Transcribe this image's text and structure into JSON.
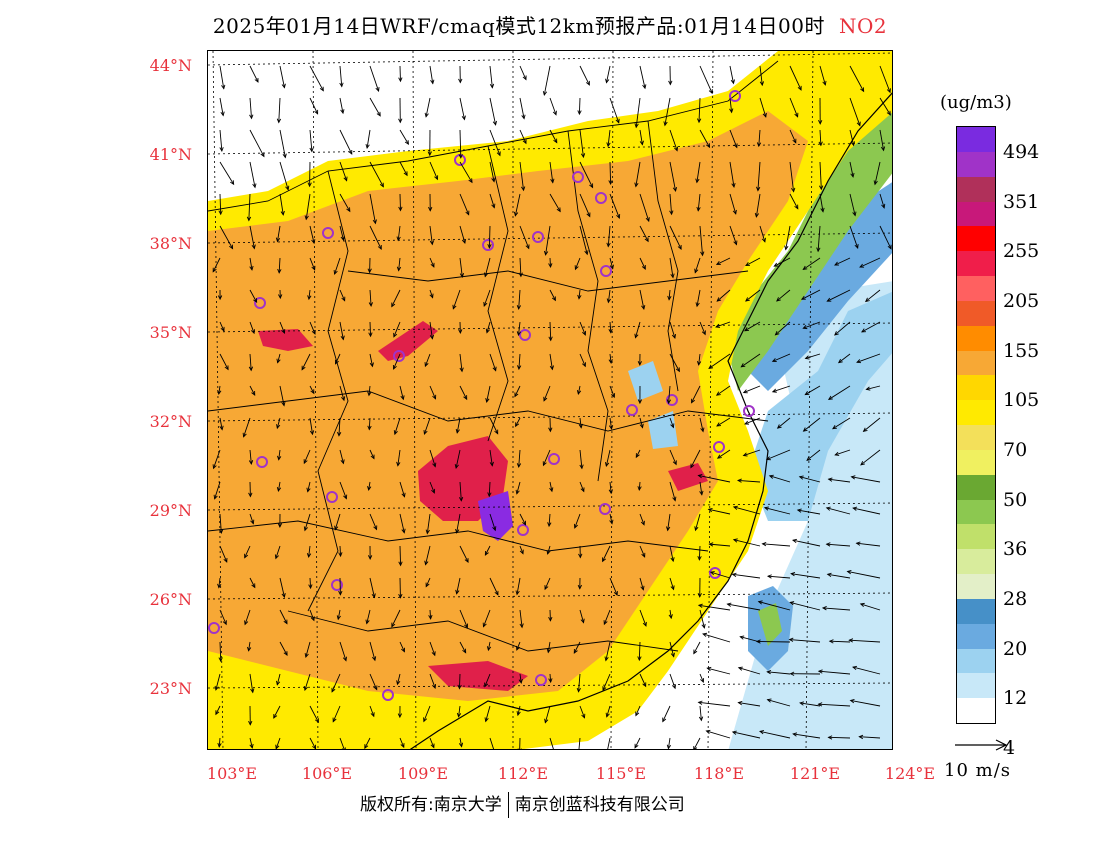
{
  "title": {
    "main": "2025年01月14日WRF/cmaq模式12km预报产品:01月14日00时",
    "species": "NO2"
  },
  "axes": {
    "lat_labels": [
      "44°N",
      "41°N",
      "38°N",
      "35°N",
      "32°N",
      "29°N",
      "26°N",
      "23°N"
    ],
    "lon_labels": [
      "103°E",
      "106°E",
      "109°E",
      "112°E",
      "115°E",
      "118°E",
      "121°E",
      "124°E"
    ]
  },
  "legend": {
    "unit": "(ug/m3)",
    "ticks": [
      "494",
      "351",
      "255",
      "205",
      "155",
      "105",
      "70",
      "50",
      "36",
      "28",
      "20",
      "12",
      "4"
    ],
    "colors": [
      "#7a2be0",
      "#a033c8",
      "#b0305a",
      "#c8187a",
      "#ff0000",
      "#f01e4a",
      "#ff6060",
      "#f05a28",
      "#ff8c00",
      "#f7a835",
      "#ffd700",
      "#ffea00",
      "#f3e05a",
      "#f0f060",
      "#6aa832",
      "#8cc850",
      "#c0e06a",
      "#d8ec9c",
      "#e3efc8",
      "#4690c8",
      "#6aaae0",
      "#9cd2f0",
      "#c8e8f8",
      "#ffffff"
    ],
    "arrow_label": "10 m/s"
  },
  "footer": {
    "left": "版权所有:南京大学",
    "right": "南京创蓝科技有限公司"
  },
  "colors": {
    "label_red": "#e8323c",
    "orange": "#f7a835",
    "yellow": "#ffea00",
    "green": "#8cc850",
    "blue": "#6aaae0",
    "red": "#e0204a",
    "purple": "#8a2be2"
  }
}
